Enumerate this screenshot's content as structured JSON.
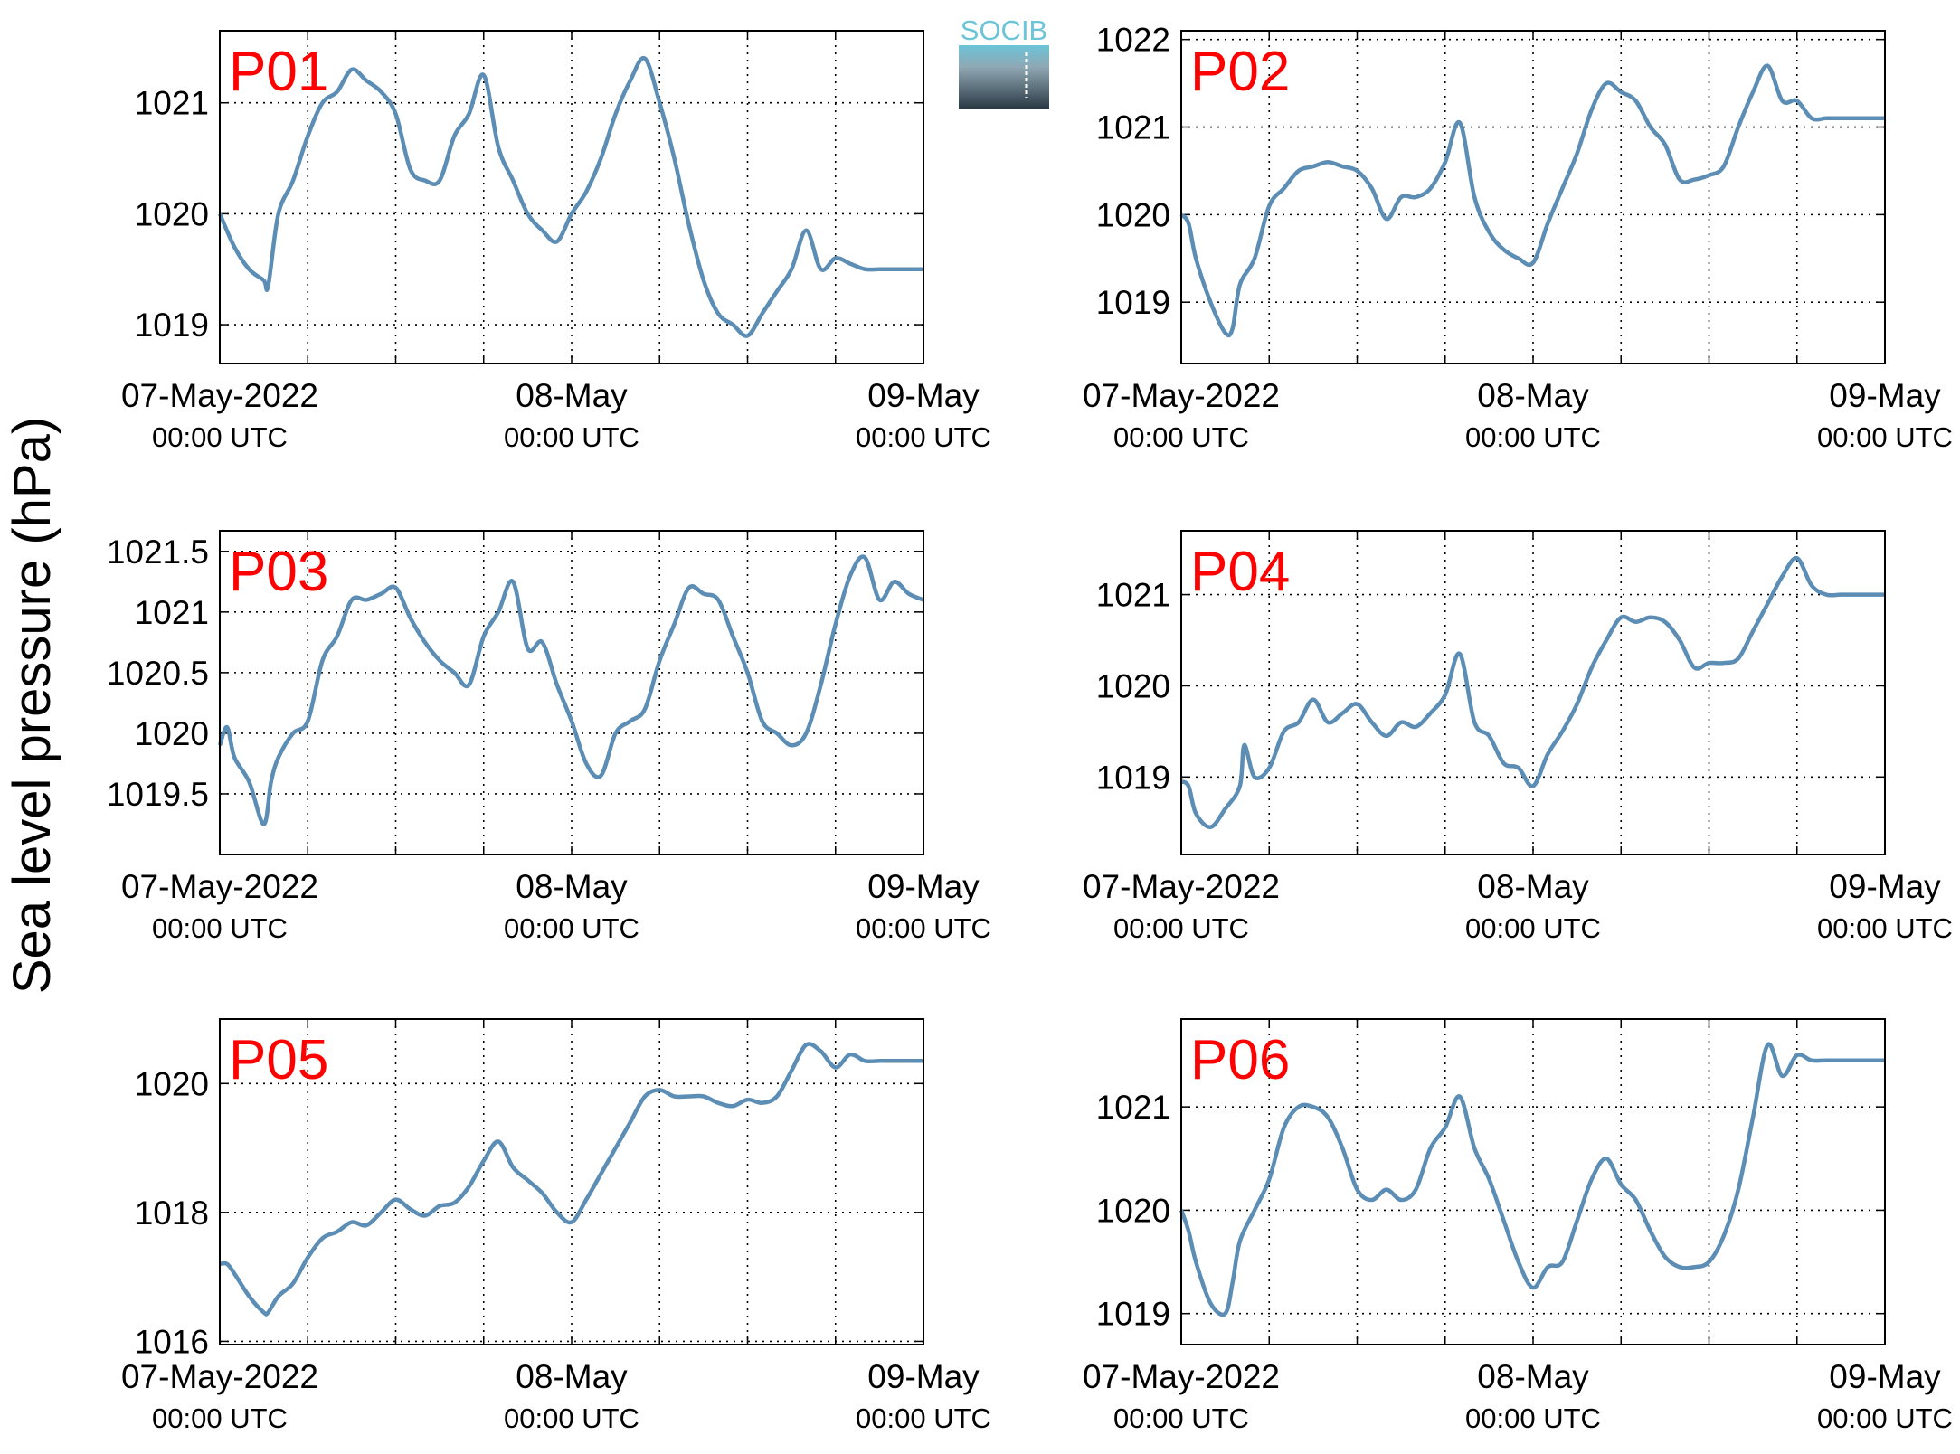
{
  "figure": {
    "ylabel": "Sea level pressure (hPa)",
    "logo_text": "SOCIB",
    "colors": {
      "line": "#5b8db5",
      "panel_label": "#ff0000",
      "axes": "#000000",
      "logo_top": "#6cc4d8",
      "logo_bottom": "#2b3a45"
    }
  },
  "chart_data": [
    {
      "type": "line",
      "name": "P01",
      "grid": true,
      "x_range_hours": [
        0,
        48
      ],
      "xticks": [
        {
          "main": "07-May-2022",
          "sub": "00:00 UTC"
        },
        {
          "main": "08-May",
          "sub": "00:00 UTC"
        },
        {
          "main": "09-May",
          "sub": "00:00 UTC"
        }
      ],
      "ylim": [
        1018.65,
        1021.65
      ],
      "yticks": [
        1019,
        1020,
        1021
      ],
      "x": [
        0,
        1,
        2,
        3,
        3.3,
        4,
        5,
        6,
        7,
        8,
        9,
        10,
        11,
        12,
        13,
        14,
        15,
        16,
        17,
        18,
        19,
        20,
        21,
        22,
        23,
        24,
        25,
        26,
        27,
        28,
        29,
        30,
        31,
        32,
        33,
        34,
        35,
        36,
        37,
        38,
        39,
        40,
        41,
        42,
        43,
        44,
        45,
        46,
        47,
        48
      ],
      "y": [
        1020.0,
        1019.7,
        1019.5,
        1019.4,
        1019.35,
        1020.0,
        1020.3,
        1020.7,
        1021.0,
        1021.1,
        1021.3,
        1021.2,
        1021.1,
        1020.9,
        1020.4,
        1020.3,
        1020.3,
        1020.7,
        1020.9,
        1021.25,
        1020.6,
        1020.3,
        1020.0,
        1019.85,
        1019.75,
        1020.0,
        1020.2,
        1020.5,
        1020.9,
        1021.2,
        1021.4,
        1021.0,
        1020.5,
        1019.9,
        1019.4,
        1019.1,
        1019.0,
        1018.9,
        1019.1,
        1019.3,
        1019.5,
        1019.85,
        1019.5,
        1019.6,
        1019.55,
        1019.5,
        1019.5,
        1019.5,
        1019.5,
        1019.5
      ]
    },
    {
      "type": "line",
      "name": "P02",
      "grid": true,
      "x_range_hours": [
        0,
        48
      ],
      "xticks": [
        {
          "main": "07-May-2022",
          "sub": "00:00 UTC"
        },
        {
          "main": "08-May",
          "sub": "00:00 UTC"
        },
        {
          "main": "09-May",
          "sub": "00:00 UTC"
        }
      ],
      "ylim": [
        1018.3,
        1022.1
      ],
      "yticks": [
        1019,
        1020,
        1021,
        1022
      ],
      "x": [
        0,
        0.5,
        1,
        2,
        3,
        3.5,
        4,
        5,
        6,
        7,
        8,
        9,
        10,
        11,
        12,
        13,
        14,
        15,
        16,
        17,
        18,
        19,
        20,
        21,
        22,
        23,
        24,
        25,
        26,
        27,
        28,
        29,
        30,
        31,
        32,
        33,
        34,
        35,
        36,
        37,
        38,
        39,
        40,
        41,
        42,
        43,
        44,
        45,
        46,
        47,
        47.5,
        48
      ],
      "y": [
        1020.0,
        1019.9,
        1019.5,
        1019.0,
        1018.65,
        1018.7,
        1019.2,
        1019.5,
        1020.1,
        1020.3,
        1020.5,
        1020.55,
        1020.6,
        1020.55,
        1020.5,
        1020.3,
        1019.95,
        1020.2,
        1020.2,
        1020.3,
        1020.6,
        1021.05,
        1020.2,
        1019.8,
        1019.6,
        1019.5,
        1019.45,
        1019.9,
        1020.3,
        1020.7,
        1021.2,
        1021.5,
        1021.4,
        1021.3,
        1021.0,
        1020.8,
        1020.4,
        1020.4,
        1020.45,
        1020.55,
        1021.0,
        1021.4,
        1021.7,
        1021.3,
        1021.3,
        1021.1,
        1021.1,
        1021.1,
        1021.1,
        1021.1,
        1021.1,
        1021.1
      ]
    },
    {
      "type": "line",
      "name": "P03",
      "grid": true,
      "x_range_hours": [
        0,
        48
      ],
      "xticks": [
        {
          "main": "07-May-2022",
          "sub": "00:00 UTC"
        },
        {
          "main": "08-May",
          "sub": "00:00 UTC"
        },
        {
          "main": "09-May",
          "sub": "00:00 UTC"
        }
      ],
      "ylim": [
        1019.0,
        1021.67
      ],
      "yticks": [
        1019.5,
        1020,
        1020.5,
        1021,
        1021.5
      ],
      "x": [
        0,
        0.5,
        1,
        2,
        3,
        3.5,
        4,
        5,
        6,
        7,
        8,
        9,
        10,
        11,
        12,
        13,
        14,
        15,
        16,
        17,
        18,
        19,
        20,
        21,
        22,
        23,
        24,
        25,
        26,
        27,
        28,
        29,
        30,
        31,
        32,
        33,
        34,
        35,
        36,
        37,
        38,
        39,
        40,
        41,
        42,
        43,
        44,
        45,
        46,
        47,
        48
      ],
      "y": [
        1019.9,
        1020.05,
        1019.8,
        1019.6,
        1019.25,
        1019.6,
        1019.8,
        1020.0,
        1020.1,
        1020.6,
        1020.8,
        1021.1,
        1021.1,
        1021.15,
        1021.2,
        1020.95,
        1020.75,
        1020.6,
        1020.5,
        1020.4,
        1020.8,
        1021.0,
        1021.25,
        1020.7,
        1020.75,
        1020.4,
        1020.1,
        1019.75,
        1019.65,
        1020.0,
        1020.1,
        1020.2,
        1020.6,
        1020.9,
        1021.2,
        1021.15,
        1021.1,
        1020.8,
        1020.5,
        1020.1,
        1020.0,
        1019.9,
        1020.0,
        1020.4,
        1020.9,
        1021.3,
        1021.45,
        1021.1,
        1021.25,
        1021.15,
        1021.1
      ]
    },
    {
      "type": "line",
      "name": "P04",
      "grid": true,
      "x_range_hours": [
        0,
        48
      ],
      "xticks": [
        {
          "main": "07-May-2022",
          "sub": "00:00 UTC"
        },
        {
          "main": "08-May",
          "sub": "00:00 UTC"
        },
        {
          "main": "09-May",
          "sub": "00:00 UTC"
        }
      ],
      "ylim": [
        1018.15,
        1021.7
      ],
      "yticks": [
        1019,
        1020,
        1021
      ],
      "x": [
        0,
        0.5,
        1,
        2,
        3,
        4,
        4.3,
        5,
        6,
        7,
        8,
        9,
        10,
        11,
        12,
        13,
        14,
        15,
        16,
        17,
        18,
        19,
        20,
        21,
        22,
        23,
        24,
        25,
        26,
        27,
        28,
        29,
        30,
        31,
        32,
        33,
        34,
        35,
        36,
        37,
        38,
        39,
        40,
        41,
        42,
        43,
        44,
        45,
        46,
        47,
        48
      ],
      "y": [
        1018.95,
        1018.9,
        1018.6,
        1018.45,
        1018.65,
        1018.9,
        1019.35,
        1019.0,
        1019.1,
        1019.5,
        1019.6,
        1019.85,
        1019.6,
        1019.7,
        1019.8,
        1019.6,
        1019.45,
        1019.6,
        1019.55,
        1019.7,
        1019.9,
        1020.35,
        1019.6,
        1019.45,
        1019.15,
        1019.1,
        1018.9,
        1019.25,
        1019.5,
        1019.8,
        1020.2,
        1020.5,
        1020.75,
        1020.7,
        1020.75,
        1020.7,
        1020.5,
        1020.2,
        1020.25,
        1020.25,
        1020.3,
        1020.6,
        1020.9,
        1021.2,
        1021.4,
        1021.1,
        1021.0,
        1021.0,
        1021.0,
        1021.0,
        1021.0
      ]
    },
    {
      "type": "line",
      "name": "P05",
      "grid": true,
      "x_range_hours": [
        0,
        48
      ],
      "xticks": [
        {
          "main": "07-May-2022",
          "sub": "00:00 UTC"
        },
        {
          "main": "08-May",
          "sub": "00:00 UTC"
        },
        {
          "main": "09-May",
          "sub": "00:00 UTC"
        }
      ],
      "ylim": [
        1015.95,
        1021.0
      ],
      "yticks": [
        1016,
        1018,
        1020
      ],
      "x": [
        0,
        0.5,
        1,
        2,
        3,
        3.3,
        4,
        5,
        6,
        7,
        8,
        9,
        10,
        11,
        12,
        13,
        14,
        15,
        16,
        17,
        18,
        19,
        20,
        21,
        22,
        23,
        24,
        25,
        26,
        27,
        28,
        29,
        30,
        31,
        32,
        33,
        34,
        35,
        36,
        37,
        38,
        39,
        40,
        41,
        42,
        43,
        44,
        45,
        46,
        47,
        48
      ],
      "y": [
        1017.2,
        1017.2,
        1017.05,
        1016.7,
        1016.45,
        1016.45,
        1016.7,
        1016.9,
        1017.3,
        1017.6,
        1017.7,
        1017.85,
        1017.8,
        1018.0,
        1018.2,
        1018.05,
        1017.95,
        1018.1,
        1018.15,
        1018.4,
        1018.8,
        1019.1,
        1018.7,
        1018.5,
        1018.3,
        1018.0,
        1017.85,
        1018.2,
        1018.6,
        1019.0,
        1019.4,
        1019.8,
        1019.9,
        1019.8,
        1019.8,
        1019.8,
        1019.7,
        1019.65,
        1019.75,
        1019.7,
        1019.8,
        1020.2,
        1020.6,
        1020.5,
        1020.25,
        1020.45,
        1020.35,
        1020.35,
        1020.35,
        1020.35,
        1020.35
      ]
    },
    {
      "type": "line",
      "name": "P06",
      "grid": true,
      "x_range_hours": [
        0,
        48
      ],
      "xticks": [
        {
          "main": "07-May-2022",
          "sub": "00:00 UTC"
        },
        {
          "main": "08-May",
          "sub": "00:00 UTC"
        },
        {
          "main": "09-May",
          "sub": "00:00 UTC"
        }
      ],
      "ylim": [
        1018.7,
        1021.85
      ],
      "yticks": [
        1019,
        1020,
        1021
      ],
      "x": [
        0,
        0.5,
        1,
        2,
        3,
        3.5,
        4,
        5,
        6,
        7,
        8,
        9,
        10,
        11,
        12,
        13,
        14,
        15,
        16,
        17,
        18,
        19,
        20,
        21,
        22,
        23,
        24,
        25,
        26,
        27,
        28,
        29,
        30,
        31,
        32,
        33,
        34,
        35,
        36,
        37,
        38,
        39,
        40,
        41,
        42,
        43,
        44,
        45,
        46,
        47,
        48
      ],
      "y": [
        1020.0,
        1019.8,
        1019.5,
        1019.1,
        1019.0,
        1019.3,
        1019.7,
        1020.0,
        1020.3,
        1020.8,
        1021.0,
        1021.0,
        1020.9,
        1020.6,
        1020.2,
        1020.1,
        1020.2,
        1020.1,
        1020.2,
        1020.6,
        1020.8,
        1021.1,
        1020.6,
        1020.3,
        1019.9,
        1019.5,
        1019.25,
        1019.45,
        1019.5,
        1019.9,
        1020.3,
        1020.5,
        1020.25,
        1020.1,
        1019.8,
        1019.55,
        1019.45,
        1019.45,
        1019.5,
        1019.75,
        1020.2,
        1020.9,
        1021.6,
        1021.3,
        1021.5,
        1021.45,
        1021.45,
        1021.45,
        1021.45,
        1021.45,
        1021.45
      ]
    }
  ]
}
